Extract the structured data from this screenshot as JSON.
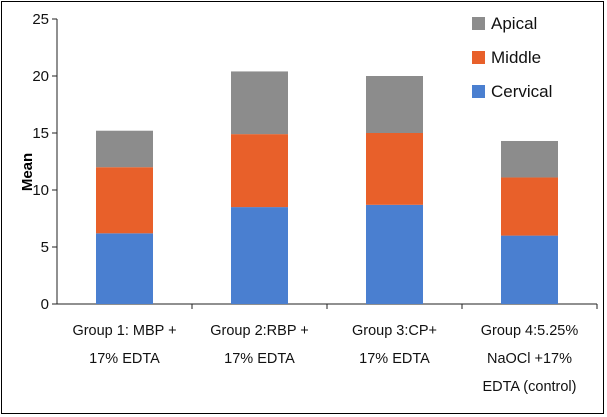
{
  "chart_data": {
    "type": "bar",
    "stacked": true,
    "title": "",
    "xlabel": "",
    "ylabel": "Mean",
    "ylim": [
      0,
      25
    ],
    "yticks": [
      0,
      5,
      10,
      15,
      20,
      25
    ],
    "grid": false,
    "legend_position": "top-right",
    "categories": [
      [
        "Group 1: MBP +",
        "17% EDTA"
      ],
      [
        "Group 2:RBP +",
        "17% EDTA"
      ],
      [
        "Group 3:CP+",
        "17% EDTA"
      ],
      [
        "Group 4:5.25%",
        "NaOCl +17%",
        "EDTA (control)"
      ]
    ],
    "series": [
      {
        "name": "Cervical",
        "color": "#4a7fd0",
        "values": [
          6.2,
          8.5,
          8.7,
          6.0
        ]
      },
      {
        "name": "Middle",
        "color": "#e8602a",
        "values": [
          5.8,
          6.4,
          6.3,
          5.1
        ]
      },
      {
        "name": "Apical",
        "color": "#8c8c8c",
        "values": [
          3.2,
          5.5,
          5.0,
          3.2
        ]
      }
    ],
    "legend_order": [
      "Apical",
      "Middle",
      "Cervical"
    ]
  }
}
